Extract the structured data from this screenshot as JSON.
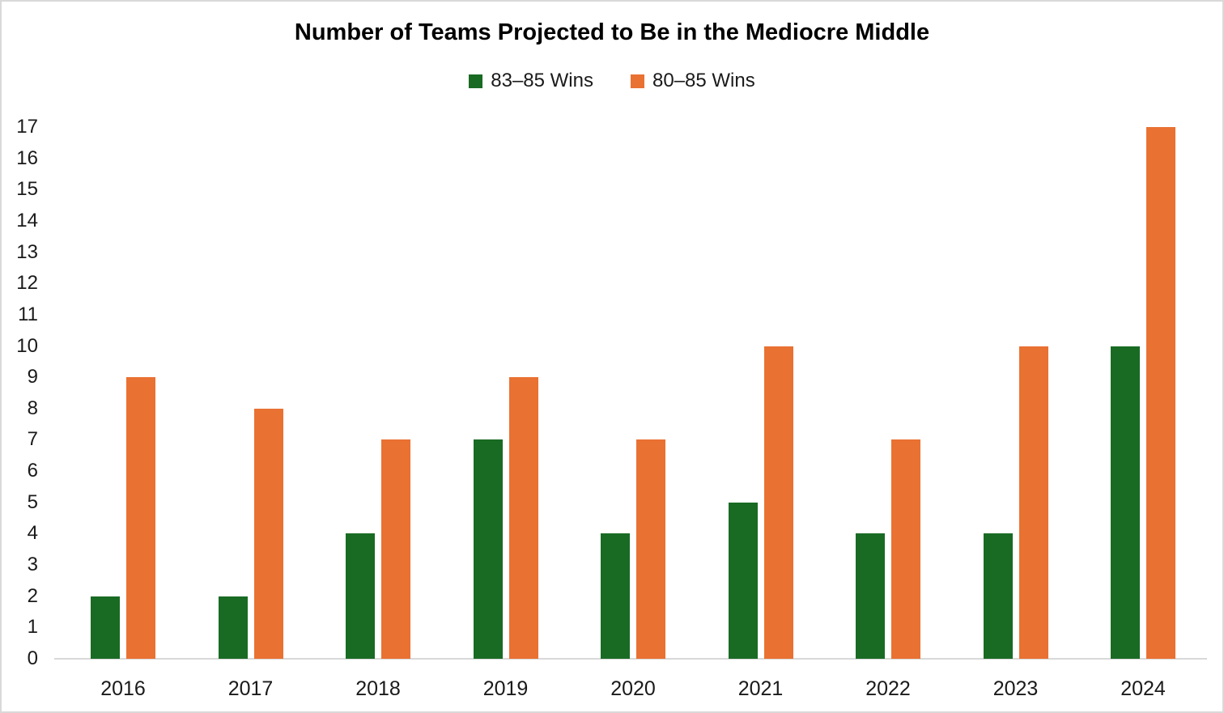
{
  "chart_data": {
    "type": "bar",
    "title": "Number of Teams Projected to Be in the Mediocre Middle",
    "categories": [
      "2016",
      "2017",
      "2018",
      "2019",
      "2020",
      "2021",
      "2022",
      "2023",
      "2024"
    ],
    "series": [
      {
        "name": "83–85 Wins",
        "color": "#196B24",
        "values": [
          2,
          2,
          4,
          7,
          4,
          5,
          4,
          4,
          10
        ]
      },
      {
        "name": "80–85 Wins",
        "color": "#E97132",
        "values": [
          9,
          8,
          7,
          9,
          7,
          10,
          7,
          10,
          17
        ]
      }
    ],
    "xlabel": "",
    "ylabel": "",
    "ylim": [
      0,
      17
    ],
    "ytick_step": 1,
    "grid": false,
    "legend_position": "top-center",
    "axis_color": "#D9D9D9",
    "text_color": "#1A1A1A",
    "background_color": "#FFFFFF"
  }
}
